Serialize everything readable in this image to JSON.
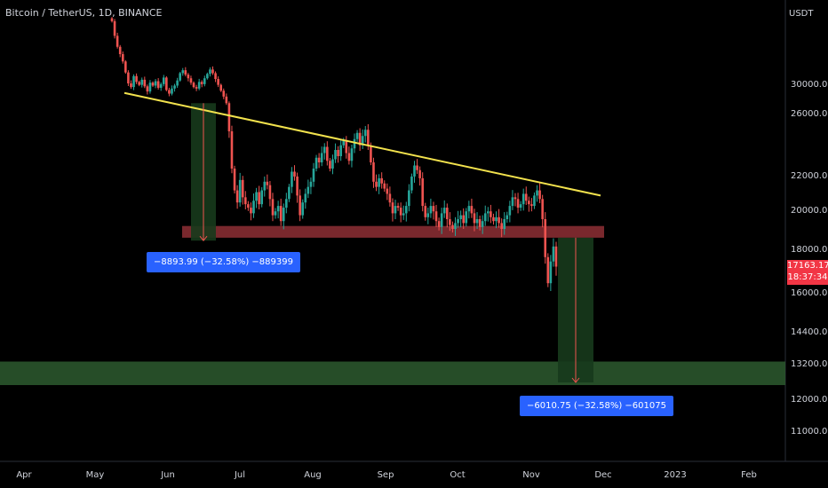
{
  "header": {
    "title": "Bitcoin / TetherUS, 1D, BINANCE"
  },
  "price_axis": {
    "currency": "USDT"
  },
  "last_price": {
    "value": "17163.17",
    "countdown": "18:37:34"
  },
  "measurements": [
    {
      "label": "−8893.99 (−32.58%) −889399"
    },
    {
      "label": "−6010.75 (−32.58%) −601075"
    }
  ],
  "colors": {
    "up": "#26a69a",
    "down": "#ef5350",
    "trendline": "#f2e24d",
    "support_zone": "#8e2f35",
    "target_zone": "#2d5a2f",
    "measure_box": "#173a1c",
    "label_bg": "#2962ff",
    "price_tag": "#f23645"
  },
  "chart_data": {
    "type": "candlestick",
    "title": "Bitcoin / TetherUS, 1D, BINANCE",
    "y_ticks": [
      30000,
      26000,
      22000,
      20000,
      18000,
      16000,
      14400,
      13200,
      12000,
      11000
    ],
    "y_tick_labels": [
      "30000.00",
      "26000.00",
      "22000.00",
      "20000.00",
      "18000.00",
      "16000.00",
      "14400.00",
      "13200.00",
      "12000.00",
      "11000.00"
    ],
    "x_tick_labels": [
      "Apr",
      "May",
      "Jun",
      "Jul",
      "Aug",
      "Sep",
      "Oct",
      "Nov",
      "Dec",
      "2023",
      "Feb"
    ],
    "series": [
      {
        "kind": "candles",
        "dates": [],
        "close": [
          38500,
          36500,
          35000,
          34000,
          33000,
          31500,
          30000,
          29500,
          31000,
          30200,
          29800,
          30500,
          29600,
          28900,
          30100,
          29700,
          30300,
          29400,
          29900,
          30800,
          29100,
          28600,
          29300,
          29700,
          30400,
          31400,
          31800,
          31200,
          30700,
          30100,
          29500,
          29300,
          30200,
          29900,
          30700,
          31300,
          31900,
          31400,
          30600,
          29800,
          29000,
          28200,
          27300,
          24800,
          22400,
          21100,
          20400,
          21700,
          20700,
          20300,
          20100,
          19800,
          20500,
          21000,
          20300,
          21100,
          21600,
          21400,
          20600,
          19700,
          19900,
          20200,
          19400,
          20100,
          20600,
          21300,
          22200,
          21900,
          20800,
          19700,
          20400,
          20900,
          21300,
          21600,
          22400,
          23100,
          22800,
          23400,
          23800,
          22900,
          22400,
          23000,
          23600,
          23200,
          23900,
          24200,
          23400,
          22900,
          23700,
          24300,
          24700,
          23900,
          24500,
          24900,
          23900,
          22800,
          21600,
          21300,
          21800,
          21500,
          21200,
          20900,
          20400,
          19800,
          20200,
          20100,
          19700,
          19800,
          20200,
          21100,
          21900,
          22600,
          22300,
          21800,
          20200,
          19600,
          19800,
          20200,
          19900,
          19400,
          19100,
          19800,
          20100,
          19500,
          19200,
          19000,
          19300,
          19500,
          19700,
          19300,
          19900,
          20200,
          19800,
          19300,
          19500,
          19100,
          19400,
          19800,
          19900,
          19600,
          19400,
          19600,
          19300,
          19000,
          19500,
          19700,
          20200,
          20700,
          20600,
          20100,
          20300,
          20900,
          20500,
          20300,
          20200,
          20800,
          21100,
          20600,
          19500,
          17600,
          16400,
          17400,
          18100,
          17163
        ]
      },
      {
        "kind": "trendline",
        "points": [
          [
            0,
            28700
          ],
          [
            1,
            20800
          ]
        ]
      }
    ],
    "zones": [
      {
        "name": "",
        "range": [
          18550,
          19150
        ]
      },
      {
        "name": "",
        "range": [
          12450,
          13250
        ]
      }
    ],
    "measures": [
      {
        "from": 27300,
        "to": 18400
      },
      {
        "from": 18550,
        "to": 12540
      }
    ],
    "grid": false,
    "last_value": 17163.17
  }
}
